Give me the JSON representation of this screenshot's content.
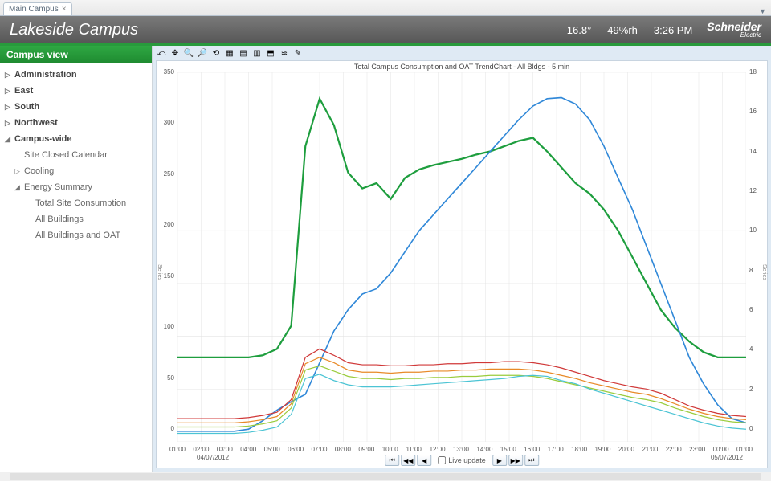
{
  "tab": {
    "label": "Main Campus",
    "close": "×"
  },
  "header": {
    "title": "Lakeside Campus",
    "temp": "16.8°",
    "humidity": "49%rh",
    "time": "3:26 PM",
    "brand": "Schneider",
    "brand_sub": "Electric"
  },
  "sidebar": {
    "title": "Campus view",
    "items": [
      {
        "label": "Administration",
        "arrow": "▷",
        "bold": true
      },
      {
        "label": "East",
        "arrow": "▷",
        "bold": true
      },
      {
        "label": "South",
        "arrow": "▷",
        "bold": true
      },
      {
        "label": "Northwest",
        "arrow": "▷",
        "bold": true
      },
      {
        "label": "Campus-wide",
        "arrow": "◢",
        "bold": true,
        "children": [
          {
            "label": "Site Closed Calendar"
          },
          {
            "label": "Cooling",
            "arrow": "▷"
          },
          {
            "label": "Energy Summary",
            "arrow": "◢",
            "children": [
              {
                "label": "Total Site Consumption"
              },
              {
                "label": "All Buildings"
              },
              {
                "label": "All Buildings and OAT"
              }
            ]
          }
        ]
      }
    ]
  },
  "toolbar_icons": [
    "⤺",
    "✥",
    "🔍",
    "🔎",
    "⟲",
    "▦",
    "▤",
    "▥",
    "⬒",
    "≋",
    "✎"
  ],
  "chart": {
    "title": "Total Campus Consumption and OAT TrendChart - All Bldgs - 5 min",
    "background_color": "#ffffff",
    "grid_color": "#e4e4e4",
    "font_size_title": 9,
    "font_size_axis": 8,
    "y_left": {
      "min": 0,
      "max": 350,
      "step": 50
    },
    "y_right": {
      "min": 0,
      "max": 18,
      "step": 2
    },
    "x_labels": [
      "01:00",
      "02:00",
      "03:00",
      "04:00",
      "05:00",
      "06:00",
      "07:00",
      "08:00",
      "09:00",
      "10:00",
      "11:00",
      "12:00",
      "13:00",
      "14:00",
      "15:00",
      "16:00",
      "17:00",
      "18:00",
      "19:00",
      "20:00",
      "21:00",
      "22:00",
      "23:00",
      "00:00",
      "01:00"
    ],
    "x_date_left": "04/07/2012",
    "x_date_right": "05/07/2012",
    "y_left_label": "Series",
    "y_right_label": "Series",
    "series": [
      {
        "name": "green_main",
        "color": "#1e9e3e",
        "width": 2.2,
        "data": [
          80,
          80,
          80,
          80,
          80,
          80,
          82,
          88,
          110,
          280,
          325,
          300,
          255,
          240,
          245,
          230,
          250,
          258,
          262,
          265,
          268,
          272,
          275,
          280,
          285,
          288,
          275,
          260,
          245,
          235,
          220,
          200,
          175,
          150,
          125,
          108,
          95,
          85,
          80,
          80,
          80
        ]
      },
      {
        "name": "blue_main",
        "color": "#3088d8",
        "width": 1.6,
        "data": [
          10,
          10,
          10,
          10,
          10,
          12,
          20,
          30,
          38,
          45,
          75,
          105,
          125,
          140,
          145,
          160,
          180,
          200,
          215,
          230,
          245,
          260,
          275,
          290,
          305,
          318,
          325,
          326,
          320,
          305,
          280,
          250,
          220,
          185,
          150,
          115,
          80,
          55,
          35,
          22,
          18
        ]
      },
      {
        "name": "red",
        "color": "#d03838",
        "width": 1.2,
        "data": [
          22,
          22,
          22,
          22,
          22,
          23,
          25,
          28,
          40,
          80,
          88,
          82,
          75,
          73,
          73,
          72,
          72,
          73,
          73,
          74,
          74,
          75,
          75,
          76,
          76,
          75,
          73,
          70,
          66,
          62,
          58,
          55,
          52,
          50,
          46,
          40,
          34,
          30,
          27,
          25,
          24
        ]
      },
      {
        "name": "orange",
        "color": "#e88a28",
        "width": 1.2,
        "data": [
          18,
          18,
          18,
          18,
          18,
          19,
          21,
          24,
          36,
          74,
          80,
          75,
          68,
          66,
          66,
          65,
          66,
          66,
          67,
          67,
          68,
          68,
          69,
          69,
          69,
          68,
          66,
          63,
          60,
          56,
          53,
          50,
          47,
          45,
          41,
          36,
          31,
          27,
          24,
          22,
          21
        ]
      },
      {
        "name": "lime",
        "color": "#9acc3c",
        "width": 1.2,
        "data": [
          14,
          14,
          14,
          14,
          14,
          15,
          17,
          20,
          32,
          68,
          72,
          67,
          62,
          60,
          60,
          59,
          60,
          60,
          61,
          61,
          62,
          62,
          63,
          63,
          63,
          62,
          60,
          57,
          54,
          51,
          48,
          45,
          42,
          40,
          37,
          32,
          28,
          24,
          21,
          19,
          18
        ]
      },
      {
        "name": "cyan",
        "color": "#4cc4d4",
        "width": 1.2,
        "data": [
          8,
          8,
          8,
          8,
          8,
          9,
          11,
          14,
          26,
          60,
          64,
          58,
          54,
          52,
          52,
          52,
          53,
          54,
          55,
          56,
          57,
          58,
          59,
          60,
          62,
          63,
          62,
          58,
          55,
          50,
          46,
          42,
          38,
          34,
          30,
          26,
          22,
          18,
          15,
          13,
          12
        ]
      }
    ]
  },
  "nav": {
    "first": "⏮",
    "prev2": "◀◀",
    "prev": "◀",
    "next": "▶",
    "next2": "▶▶",
    "last": "⏭",
    "live": "Live update"
  }
}
